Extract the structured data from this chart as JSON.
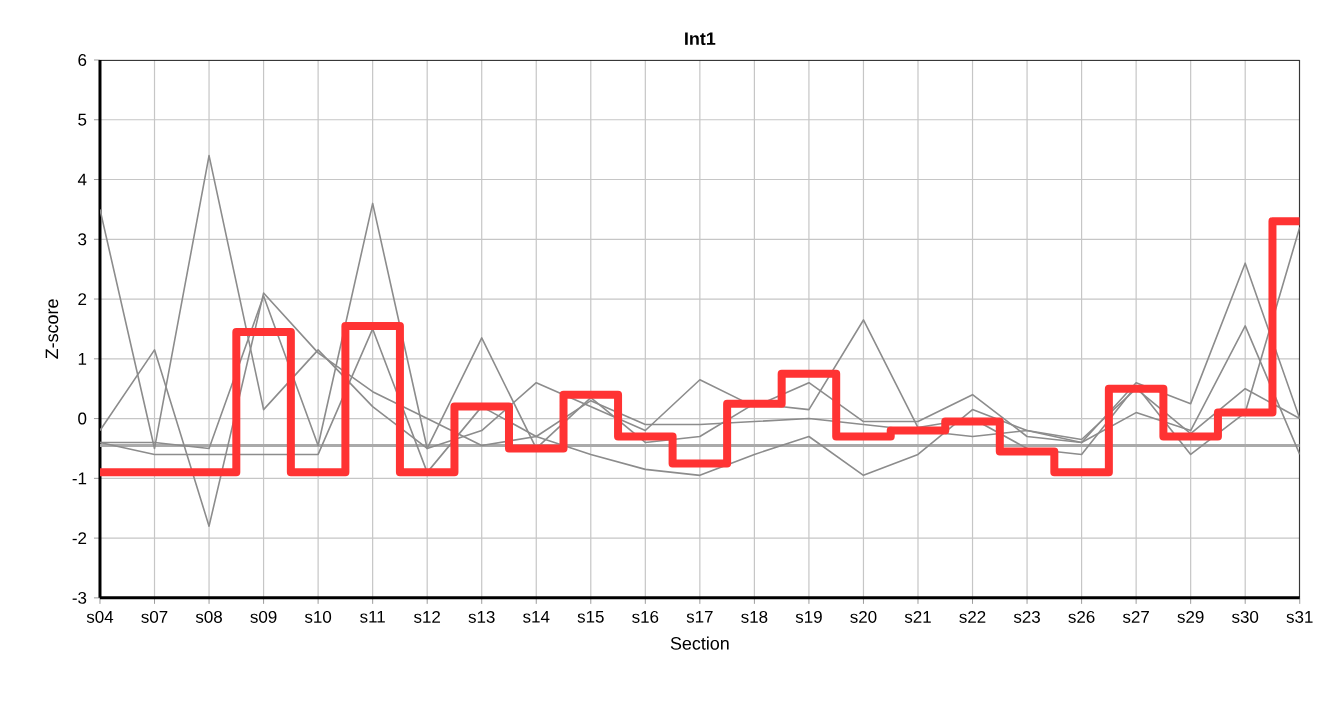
{
  "chart_data": {
    "type": "line",
    "title": "Int1",
    "xlabel": "Section",
    "ylabel": "Z-score",
    "categories": [
      "s04",
      "s07",
      "s08",
      "s09",
      "s10",
      "s11",
      "s12",
      "s13",
      "s14",
      "s15",
      "s16",
      "s17",
      "s18",
      "s19",
      "s20",
      "s21",
      "s22",
      "s23",
      "s26",
      "s27",
      "s29",
      "s30",
      "s31"
    ],
    "series": [
      {
        "color": "#8c8c8c",
        "values": [
          3.5,
          -0.5,
          4.4,
          0.15,
          1.15,
          0.2,
          -0.5,
          -0.2,
          0.6,
          0.2,
          -0.2,
          0.65,
          0.2,
          0.6,
          -0.05,
          -0.05,
          0.4,
          -0.3,
          -0.4,
          0.6,
          0.25,
          2.6,
          0.0
        ]
      },
      {
        "color": "#8c8c8c",
        "values": [
          -0.2,
          1.15,
          -1.8,
          2.1,
          1.1,
          0.45,
          0.0,
          -0.45,
          -0.3,
          -0.6,
          -0.85,
          -0.95,
          -0.6,
          -0.3,
          -0.95,
          -0.6,
          0.15,
          -0.2,
          -0.4,
          0.1,
          -0.2,
          1.55,
          -0.6
        ]
      },
      {
        "color": "#8c8c8c",
        "values": [
          -0.4,
          -0.4,
          -0.5,
          2.05,
          -0.45,
          3.6,
          -0.5,
          1.35,
          -0.5,
          0.35,
          -0.4,
          -0.3,
          0.25,
          0.15,
          1.65,
          -0.15,
          0.0,
          -0.5,
          -0.6,
          0.55,
          -0.6,
          0.1,
          3.2
        ]
      },
      {
        "color": "#8c8c8c",
        "values": [
          -0.4,
          -0.6,
          -0.6,
          -0.6,
          -0.6,
          1.5,
          -0.9,
          0.2,
          -0.3,
          0.3,
          -0.1,
          -0.1,
          -0.05,
          0.0,
          null,
          -0.2,
          -0.3,
          -0.2,
          -0.35,
          0.5,
          -0.25,
          0.5,
          0.0
        ]
      },
      {
        "type": "step",
        "color": "#ff3333",
        "values": [
          -0.9,
          -0.9,
          -0.9,
          1.45,
          -0.9,
          1.55,
          -0.9,
          0.2,
          -0.5,
          0.4,
          -0.3,
          -0.75,
          0.25,
          0.75,
          -0.3,
          -0.2,
          -0.05,
          -0.55,
          -0.9,
          0.5,
          -0.3,
          0.1,
          3.3
        ]
      }
    ],
    "ref_lines": [
      {
        "axis": "y",
        "value": -0.45,
        "color": "#aaaaaa"
      }
    ],
    "ylim": [
      -3,
      6
    ],
    "yticks": [
      -3,
      -2,
      -1,
      0,
      1,
      2,
      3,
      4,
      5,
      6
    ],
    "grid": true,
    "marker": "none",
    "line_style": "solid"
  }
}
